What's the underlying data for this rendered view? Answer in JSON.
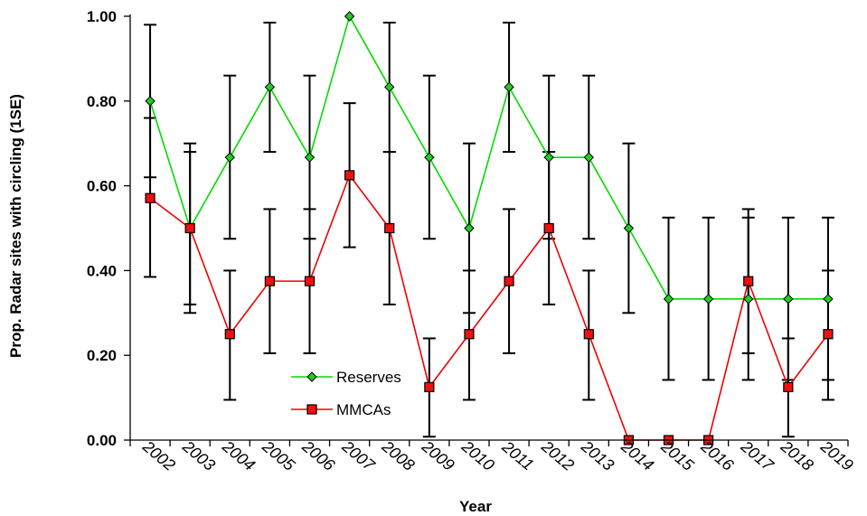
{
  "chart_data": {
    "type": "line",
    "xlabel": "Year",
    "ylabel": "Prop. Radar sites with circling (1SE)",
    "ylim": [
      0,
      1
    ],
    "yticks": [
      "0.00",
      "0.20",
      "0.40",
      "0.60",
      "0.80",
      "1.00"
    ],
    "categories": [
      "2002",
      "2003",
      "2004",
      "2005",
      "2006",
      "2007",
      "2008",
      "2009",
      "2010",
      "2011",
      "2012",
      "2013",
      "2014",
      "2015",
      "2016",
      "2017",
      "2018",
      "2019"
    ],
    "legend_position": "lower-left-inside",
    "series": [
      {
        "name": "Reserves",
        "color": "#00dd00",
        "marker": "diamond",
        "marker_color": "#22cc22",
        "values": [
          0.8,
          0.5,
          0.667,
          0.833,
          0.667,
          1.0,
          0.833,
          0.667,
          0.5,
          0.833,
          0.667,
          0.667,
          0.5,
          0.333,
          0.333,
          0.333,
          0.333,
          0.333
        ],
        "se_upper": [
          0.98,
          0.7,
          0.86,
          0.985,
          0.86,
          1.0,
          0.985,
          0.86,
          0.7,
          0.985,
          0.86,
          0.86,
          0.7,
          0.525,
          0.525,
          0.525,
          0.525,
          0.525
        ],
        "se_lower": [
          0.62,
          0.3,
          0.475,
          0.68,
          0.475,
          1.0,
          0.68,
          0.475,
          0.3,
          0.68,
          0.475,
          0.475,
          0.3,
          0.142,
          0.142,
          0.142,
          0.142,
          0.142
        ]
      },
      {
        "name": "MMCAs",
        "color": "#ee0000",
        "marker": "square",
        "marker_color": "#ee1111",
        "values": [
          0.571,
          0.5,
          0.25,
          0.375,
          0.375,
          0.625,
          0.5,
          0.125,
          0.25,
          0.375,
          0.5,
          0.25,
          0.0,
          0.0,
          0.0,
          0.375,
          0.125,
          0.25
        ],
        "se_upper": [
          0.76,
          0.68,
          0.4,
          0.545,
          0.545,
          0.795,
          0.68,
          0.24,
          0.4,
          0.545,
          0.68,
          0.4,
          0.0,
          0.0,
          0.0,
          0.545,
          0.24,
          0.4
        ],
        "se_lower": [
          0.385,
          0.32,
          0.095,
          0.205,
          0.205,
          0.455,
          0.32,
          0.008,
          0.095,
          0.205,
          0.32,
          0.095,
          0.0,
          0.0,
          0.0,
          0.205,
          0.008,
          0.095
        ]
      }
    ]
  }
}
